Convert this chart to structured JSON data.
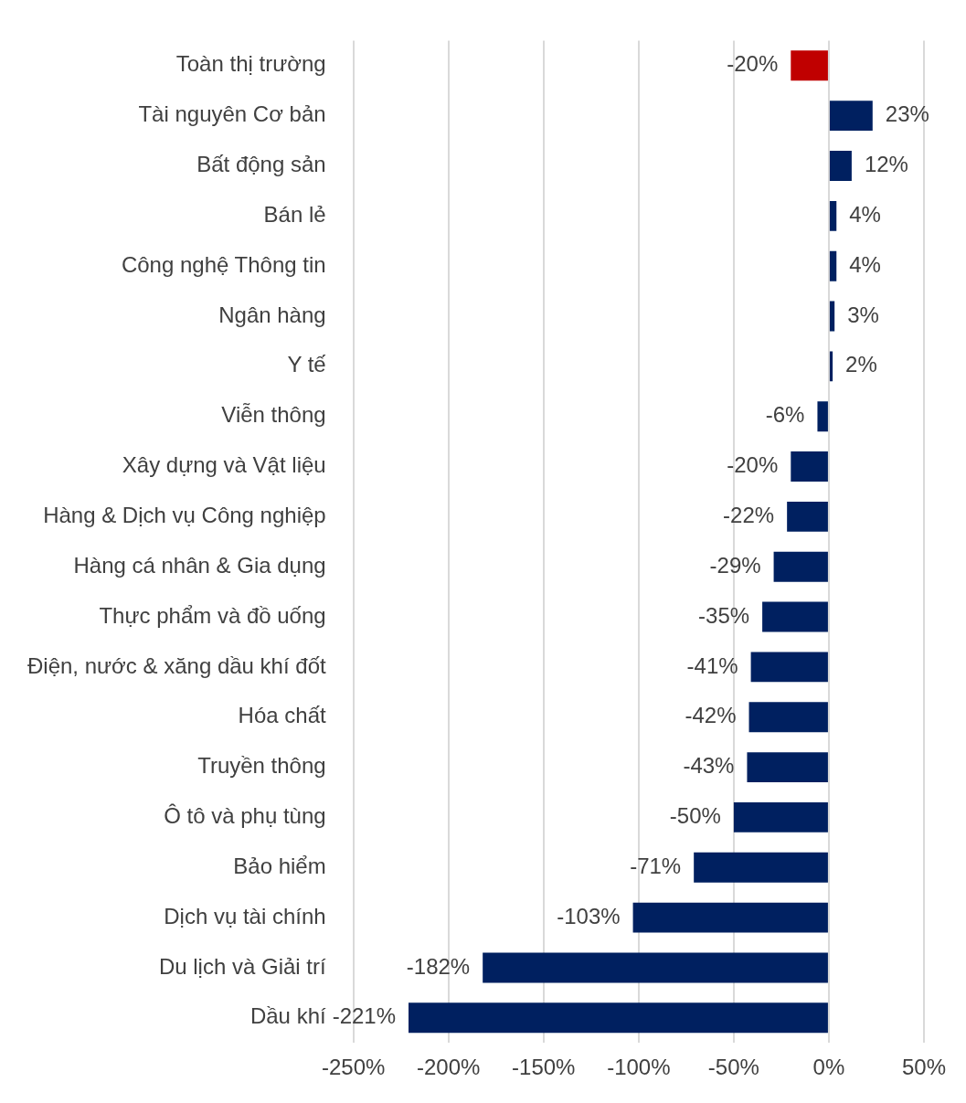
{
  "chart_data": {
    "type": "bar",
    "orientation": "horizontal",
    "categories": [
      "Toàn thị trường",
      "Tài nguyên Cơ bản",
      "Bất động sản",
      "Bán lẻ",
      "Công nghệ Thông tin",
      "Ngân hàng",
      "Y tế",
      "Viễn thông",
      "Xây dựng và Vật liệu",
      "Hàng & Dịch vụ Công nghiệp",
      "Hàng cá nhân & Gia dụng",
      "Thực phẩm và đồ uống",
      "Điện, nước & xăng dầu khí đốt",
      "Hóa chất",
      "Truyền thông",
      "Ô tô và phụ tùng",
      "Bảo hiểm",
      "Dịch vụ tài chính",
      "Du lịch và Giải trí",
      "Dầu khí"
    ],
    "values": [
      -20,
      23,
      12,
      4,
      4,
      3,
      2,
      -6,
      -20,
      -22,
      -29,
      -35,
      -41,
      -42,
      -43,
      -50,
      -71,
      -103,
      -182,
      -221
    ],
    "value_labels": [
      "-20%",
      "23%",
      "12%",
      "4%",
      "4%",
      "3%",
      "2%",
      "-6%",
      "-20%",
      "-22%",
      "-29%",
      "-35%",
      "-41%",
      "-42%",
      "-43%",
      "-50%",
      "-71%",
      "-103%",
      "-182%",
      "-221%"
    ],
    "colors": [
      "#c00000",
      "#002060",
      "#002060",
      "#002060",
      "#002060",
      "#002060",
      "#002060",
      "#002060",
      "#002060",
      "#002060",
      "#002060",
      "#002060",
      "#002060",
      "#002060",
      "#002060",
      "#002060",
      "#002060",
      "#002060",
      "#002060",
      "#002060"
    ],
    "xlim": [
      -250,
      50
    ],
    "xticks": [
      {
        "value": -250,
        "label": "-250%"
      },
      {
        "value": -200,
        "label": "-200%"
      },
      {
        "value": -150,
        "label": "-150%"
      },
      {
        "value": -100,
        "label": "-100%"
      },
      {
        "value": -50,
        "label": "-50%"
      },
      {
        "value": 0,
        "label": "0%"
      },
      {
        "value": 50,
        "label": "50%"
      }
    ],
    "grid": "x",
    "legend": false
  }
}
